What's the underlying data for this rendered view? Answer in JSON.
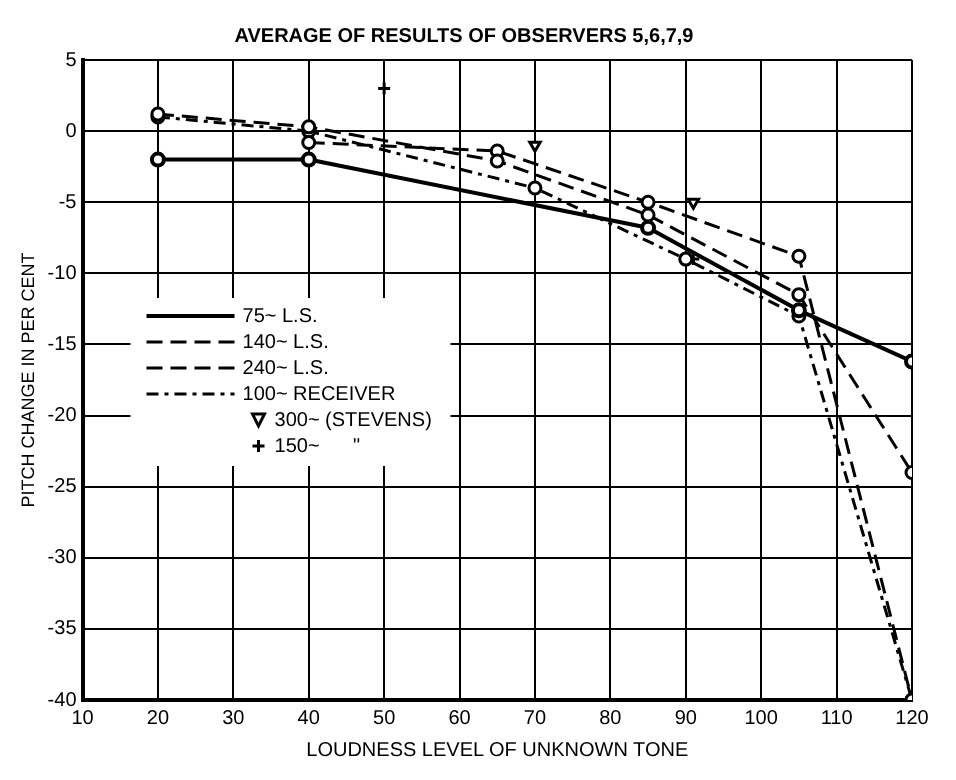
{
  "chart_data": {
    "type": "line",
    "title": "AVERAGE OF RESULTS OF OBSERVERS 5,6,7,9",
    "xlabel": "LOUDNESS LEVEL OF UNKNOWN TONE",
    "ylabel": "PITCH CHANGE IN PER CENT",
    "xlim": [
      10,
      120
    ],
    "xticks": [
      10,
      20,
      30,
      40,
      50,
      60,
      70,
      80,
      90,
      100,
      110,
      120
    ],
    "ylim": [
      -40,
      5
    ],
    "yticks": [
      -40,
      -35,
      -30,
      -25,
      -20,
      -15,
      -10,
      -5,
      0,
      5
    ],
    "grid": true,
    "legend": "left",
    "series": [
      {
        "name": "75~ L.S.",
        "color": "#000000",
        "line_style": "solid",
        "marker": "circle",
        "x": [
          20,
          40,
          85,
          105,
          120
        ],
        "values": [
          -2,
          -2,
          -6.8,
          -12.6,
          -16.2
        ]
      },
      {
        "name": "140~ L.S.",
        "color": "#000000",
        "line_style": "dashed",
        "marker": "circle",
        "x": [
          20,
          40,
          65,
          85,
          105,
          120
        ],
        "values": [
          1.2,
          0.3,
          -2.1,
          -5.9,
          -11.5,
          -24
        ]
      },
      {
        "name": "240~ L.S.",
        "color": "#000000",
        "line_style": "dashed",
        "marker": "circle",
        "x": [
          40,
          65,
          85,
          105,
          120
        ],
        "values": [
          -0.8,
          -1.4,
          -5,
          -8.8,
          -40
        ]
      },
      {
        "name": "100~ RECEIVER",
        "color": "#000000",
        "line_style": "dotted",
        "marker": "circle",
        "x": [
          20,
          40,
          70,
          90,
          105,
          120
        ],
        "values": [
          1,
          0,
          -4,
          -9,
          -13,
          -40
        ]
      },
      {
        "name": "300~ (STEVENS)",
        "type": "scatter",
        "color": "#000000",
        "marker": "triangle",
        "x": [
          70,
          91
        ],
        "values": [
          -1,
          -5
        ]
      },
      {
        "name": "150~      \"",
        "type": "scatter",
        "color": "#000000",
        "marker": "cross",
        "x": [
          50,
          91
        ],
        "values": [
          3,
          -9
        ]
      }
    ]
  }
}
